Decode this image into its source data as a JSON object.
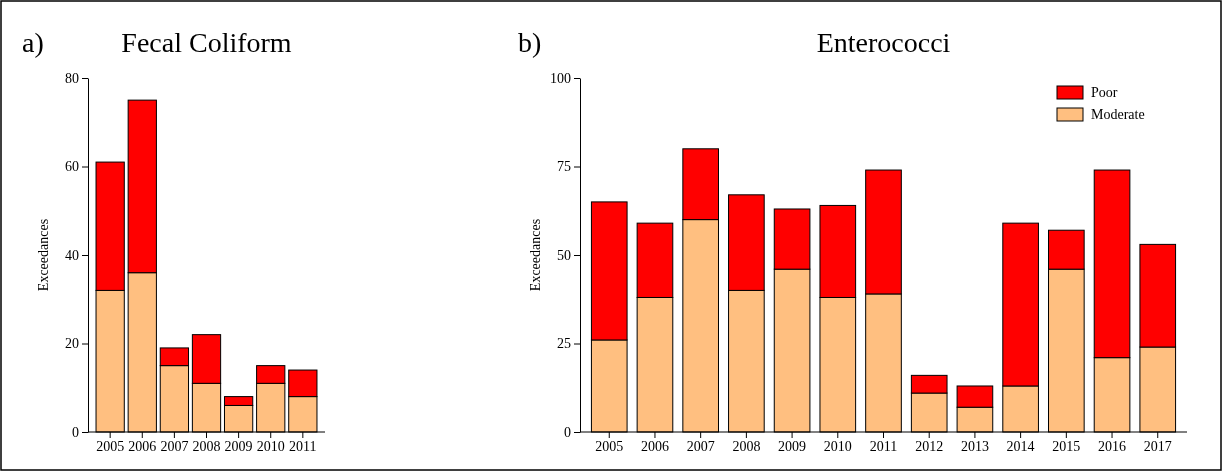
{
  "chart_data": [
    {
      "type": "bar",
      "title": "Fecal Coliform",
      "annotations": [
        "a)"
      ],
      "ylabel": "Exceedances",
      "categories": [
        "2005",
        "2006",
        "2007",
        "2008",
        "2009",
        "2010",
        "2011"
      ],
      "stacked": true,
      "ylim": [
        0,
        80
      ],
      "yticks": [
        0,
        20,
        40,
        60,
        80
      ],
      "legend": false,
      "grid": false,
      "series": [
        {
          "color": "#ffbf80",
          "values": [
            32,
            36,
            15,
            11,
            6,
            11,
            8
          ]
        },
        {
          "color": "#ff0000",
          "values": [
            29,
            39,
            4,
            11,
            2,
            4,
            6
          ]
        }
      ]
    },
    {
      "type": "bar",
      "title": "Enterococci",
      "annotations": [
        "b)"
      ],
      "ylabel": "Exceedances",
      "categories": [
        "2005",
        "2006",
        "2007",
        "2008",
        "2009",
        "2010",
        "2011",
        "2012",
        "2013",
        "2014",
        "2015",
        "2016",
        "2017"
      ],
      "stacked": true,
      "ylim": [
        0,
        100
      ],
      "yticks": [
        0,
        25,
        50,
        75,
        100
      ],
      "legend": "top right",
      "grid": false,
      "series": [
        {
          "name": "Moderate",
          "color": "#ffbf80",
          "values": [
            26,
            38,
            60,
            40,
            46,
            38,
            39,
            11,
            7,
            13,
            46,
            21,
            24
          ]
        },
        {
          "name": "Poor",
          "color": "#ff0000",
          "values": [
            39,
            21,
            20,
            27,
            17,
            26,
            35,
            5,
            6,
            46,
            11,
            53,
            29
          ]
        }
      ]
    }
  ]
}
